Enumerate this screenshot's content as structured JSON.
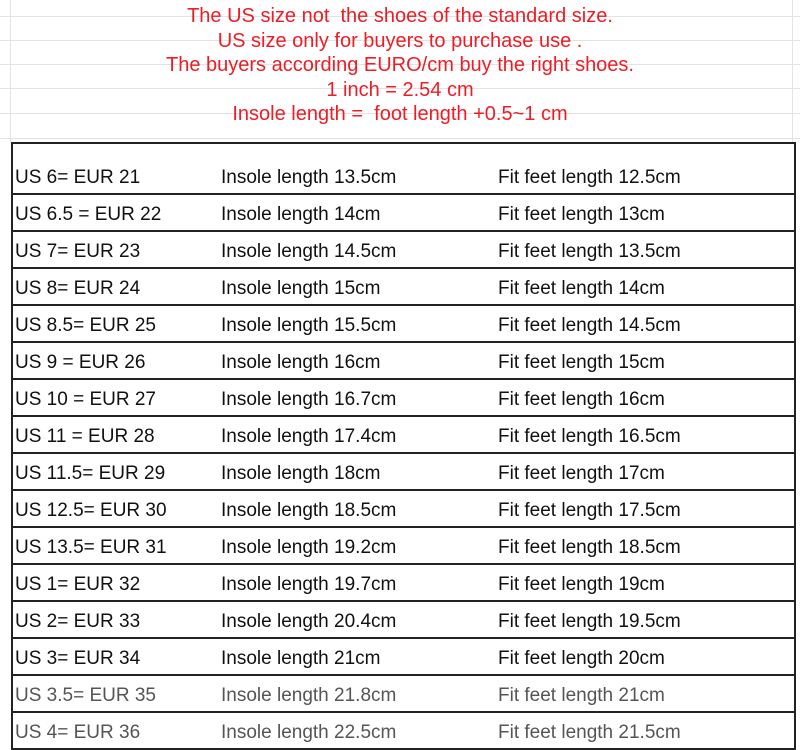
{
  "notes": [
    "The US size not  the shoes of the standard size.",
    "US size only for buyers to purchase use .",
    "The buyers according EURO/cm buy the right shoes.",
    "1 inch = 2.54 cm",
    "Insole length =  foot length +0.5~1 cm"
  ],
  "colors": {
    "notes": "#ee1c25",
    "text": "#111111",
    "border": "#222222"
  },
  "rows": [
    {
      "size": "US 6= EUR 21",
      "insole": "Insole length 13.5cm",
      "fit": "Fit feet length 12.5cm"
    },
    {
      "size": "US 6.5 = EUR 22",
      "insole": "Insole length 14cm",
      "fit": "Fit feet length 13cm"
    },
    {
      "size": "US 7= EUR 23",
      "insole": "Insole length 14.5cm",
      "fit": "Fit feet length 13.5cm"
    },
    {
      "size": "US 8= EUR 24",
      "insole": "Insole length 15cm",
      "fit": "Fit feet length 14cm"
    },
    {
      "size": "US 8.5= EUR 25",
      "insole": "Insole length 15.5cm",
      "fit": "Fit feet length 14.5cm"
    },
    {
      "size": "US 9 = EUR 26",
      "insole": "Insole length 16cm",
      "fit": "Fit feet length 15cm"
    },
    {
      "size": "US 10 = EUR 27",
      "insole": "Insole length 16.7cm",
      "fit": "Fit feet length 16cm"
    },
    {
      "size": "US 11 = EUR 28",
      "insole": "Insole length 17.4cm",
      "fit": "Fit feet length 16.5cm"
    },
    {
      "size": "US 11.5= EUR 29",
      "insole": "Insole length 18cm",
      "fit": "Fit feet length 17cm"
    },
    {
      "size": "US 12.5= EUR 30",
      "insole": "Insole length 18.5cm",
      "fit": "Fit feet length 17.5cm"
    },
    {
      "size": "US 13.5= EUR 31",
      "insole": "Insole length 19.2cm",
      "fit": "Fit feet length 18.5cm"
    },
    {
      "size": "US 1= EUR 32",
      "insole": "Insole length 19.7cm",
      "fit": "Fit feet length 19cm"
    },
    {
      "size": "US 2= EUR 33",
      "insole": "Insole length 20.4cm",
      "fit": "Fit feet length 19.5cm"
    },
    {
      "size": "US 3= EUR 34",
      "insole": "Insole length 21cm",
      "fit": "Fit feet length 20cm"
    },
    {
      "size": "US 3.5= EUR 35",
      "insole": "Insole length 21.8cm",
      "fit": "Fit feet length 21cm"
    },
    {
      "size": "US 4= EUR 36",
      "insole": "Insole length 22.5cm",
      "fit": "Fit feet length 21.5cm"
    }
  ]
}
